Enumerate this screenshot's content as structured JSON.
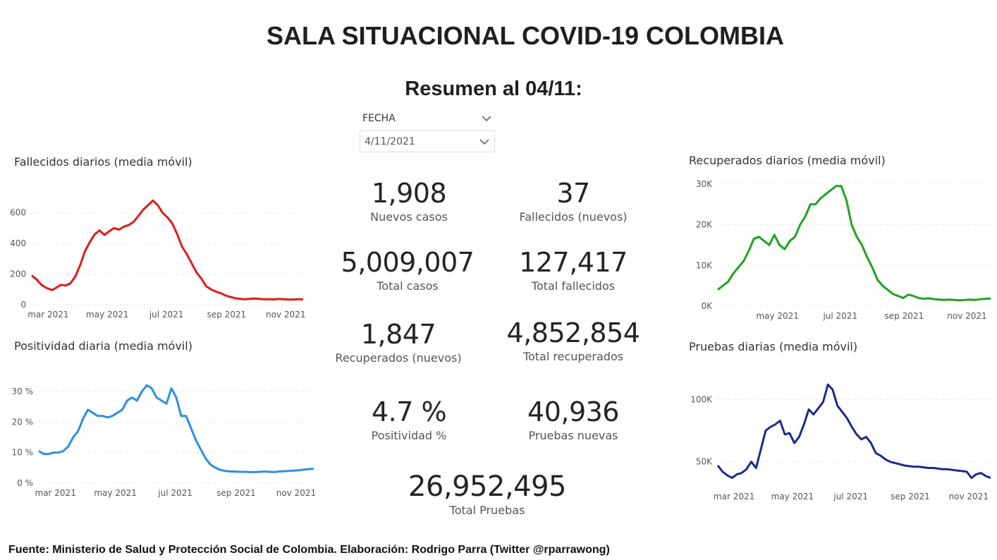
{
  "header": {
    "title": "SALA SITUACIONAL COVID-19 COLOMBIA",
    "subtitle": "Resumen al 04/11:"
  },
  "slicer": {
    "label": "FECHA",
    "value": "4/11/2021"
  },
  "kpis": [
    {
      "value": "1,908",
      "label": "Nuevos casos"
    },
    {
      "value": "37",
      "label": "Fallecidos (nuevos)"
    },
    {
      "value": "5,009,007",
      "label": "Total casos"
    },
    {
      "value": "127,417",
      "label": "Total fallecidos"
    },
    {
      "value": "1,847",
      "label": "Recuperados (nuevos)"
    },
    {
      "value": "4,852,854",
      "label": "Total recuperados"
    },
    {
      "value": "4.7 %",
      "label": "Positividad %"
    },
    {
      "value": "40,936",
      "label": "Pruebas nuevas"
    },
    {
      "value": "26,952,495",
      "label": "Total Pruebas"
    }
  ],
  "footer": "Fuente: Ministerio de Salud y Protección Social de Colombia. Elaboración: Rodrigo Parra (Twitter @rparrawong)",
  "colors": {
    "deaths": "#e01b1b",
    "positivity": "#2b8fe3",
    "recovered": "#1fa31f",
    "tests": "#1a2a8c",
    "grid": "#c8c8c8"
  },
  "chart_data": [
    {
      "id": "deaths",
      "type": "line",
      "title": "Fallecidos diarios (media móvil)",
      "ylim": [
        0,
        700
      ],
      "yticks": [
        0,
        200,
        400,
        600
      ],
      "ytick_labels": [
        "0",
        "200",
        "400",
        "600"
      ],
      "xticks": [
        {
          "label": "mar 2021",
          "x": 62
        },
        {
          "label": "may 2021",
          "x": 123
        },
        {
          "label": "jul 2021",
          "x": 184
        },
        {
          "label": "sep 2021",
          "x": 246
        },
        {
          "label": "nov 2021",
          "x": 307
        }
      ],
      "xlim": [
        45,
        325
      ],
      "grid": true,
      "series": [
        {
          "x": [
            45,
            50,
            55,
            60,
            66,
            70,
            75,
            80,
            85,
            90,
            95,
            100,
            105,
            110,
            115,
            120,
            125,
            130,
            135,
            140,
            145,
            150,
            155,
            160,
            165,
            170,
            175,
            180,
            185,
            190,
            195,
            200,
            205,
            210,
            215,
            220,
            225,
            230,
            235,
            240,
            245,
            250,
            255,
            260,
            265,
            270,
            275,
            280,
            285,
            290,
            295,
            300,
            305,
            310,
            315,
            320,
            325
          ],
          "values": [
            190,
            165,
            130,
            110,
            95,
            110,
            130,
            125,
            140,
            185,
            260,
            350,
            410,
            460,
            485,
            455,
            480,
            500,
            490,
            510,
            520,
            540,
            580,
            620,
            650,
            680,
            650,
            600,
            570,
            530,
            460,
            380,
            330,
            270,
            210,
            170,
            120,
            100,
            85,
            75,
            60,
            50,
            42,
            38,
            35,
            38,
            40,
            38,
            35,
            36,
            34,
            38,
            35,
            33,
            34,
            36,
            35
          ]
        }
      ]
    },
    {
      "id": "positivity",
      "type": "line",
      "title": "Positividad diaria (media móvil)",
      "ylim": [
        0,
        33
      ],
      "yticks": [
        0,
        10,
        20,
        30
      ],
      "ytick_labels": [
        "0 %",
        "10 %",
        "20 %",
        "30 %"
      ],
      "xticks": [
        {
          "label": "mar 2021",
          "x": 62
        },
        {
          "label": "may 2021",
          "x": 123
        },
        {
          "label": "jul 2021",
          "x": 184
        },
        {
          "label": "sep 2021",
          "x": 246
        },
        {
          "label": "nov 2021",
          "x": 307
        }
      ],
      "xlim": [
        45,
        325
      ],
      "grid": true,
      "series": [
        {
          "x": [
            45,
            50,
            55,
            60,
            65,
            70,
            75,
            80,
            85,
            90,
            95,
            100,
            105,
            110,
            115,
            120,
            125,
            130,
            135,
            140,
            145,
            150,
            155,
            160,
            165,
            170,
            175,
            180,
            185,
            190,
            195,
            200,
            205,
            210,
            215,
            220,
            225,
            230,
            235,
            240,
            245,
            250,
            255,
            260,
            265,
            270,
            275,
            280,
            285,
            290,
            295,
            300,
            305,
            310,
            315,
            320,
            325
          ],
          "values": [
            10.5,
            9.5,
            9.5,
            10,
            10,
            10.5,
            12,
            15,
            17,
            21,
            24,
            23,
            22,
            22,
            21.5,
            22,
            23,
            24,
            27,
            28,
            27,
            30,
            32,
            31,
            28,
            27,
            26,
            31,
            28,
            22,
            22,
            18,
            14,
            11,
            8,
            6,
            5,
            4.3,
            4,
            3.8,
            3.8,
            3.7,
            3.7,
            3.6,
            3.6,
            3.7,
            3.8,
            3.7,
            3.6,
            3.8,
            3.9,
            4,
            4.1,
            4.2,
            4.4,
            4.6,
            4.7
          ]
        }
      ]
    },
    {
      "id": "recovered",
      "type": "line",
      "title": "Recuperados diarios (media móvil)",
      "ylim": [
        0,
        31000
      ],
      "yticks": [
        0,
        10000,
        20000,
        30000
      ],
      "ytick_labels": [
        "0K",
        "10K",
        "20K",
        "30K"
      ],
      "xticks": [
        {
          "label": "may 2021",
          "x": 123
        },
        {
          "label": "jul 2021",
          "x": 184
        },
        {
          "label": "sep 2021",
          "x": 246
        },
        {
          "label": "nov 2021",
          "x": 307
        }
      ],
      "xlim": [
        65,
        330
      ],
      "grid": true,
      "series": [
        {
          "x": [
            65,
            70,
            75,
            80,
            85,
            90,
            95,
            100,
            105,
            110,
            115,
            120,
            125,
            130,
            135,
            140,
            145,
            150,
            155,
            160,
            165,
            170,
            175,
            180,
            185,
            190,
            195,
            200,
            205,
            210,
            215,
            220,
            225,
            230,
            235,
            240,
            245,
            250,
            255,
            260,
            265,
            270,
            275,
            280,
            285,
            290,
            295,
            300,
            305,
            310,
            315,
            320,
            325,
            330
          ],
          "values": [
            4000,
            5000,
            6000,
            8000,
            9500,
            11000,
            13500,
            16500,
            17000,
            16000,
            15000,
            17500,
            15000,
            14000,
            16000,
            17000,
            20000,
            22000,
            25000,
            25000,
            26500,
            27500,
            28500,
            29500,
            29500,
            26000,
            20000,
            17000,
            15000,
            12000,
            9500,
            6500,
            5000,
            4000,
            3000,
            2500,
            2000,
            2800,
            2500,
            2000,
            1800,
            1900,
            1700,
            1600,
            1500,
            1600,
            1500,
            1400,
            1500,
            1600,
            1500,
            1700,
            1800,
            1850
          ]
        }
      ]
    },
    {
      "id": "tests",
      "type": "line",
      "title": "Pruebas diarias (media móvil)",
      "ylim": [
        30000,
        115000
      ],
      "yticks": [
        50000,
        100000
      ],
      "ytick_labels": [
        "50K",
        "100K"
      ],
      "xticks": [
        {
          "label": "mar 2021",
          "x": 62
        },
        {
          "label": "may 2021",
          "x": 123
        },
        {
          "label": "jul 2021",
          "x": 184
        },
        {
          "label": "sep 2021",
          "x": 246
        },
        {
          "label": "nov 2021",
          "x": 307
        }
      ],
      "xlim": [
        45,
        330
      ],
      "grid": true,
      "series": [
        {
          "x": [
            45,
            50,
            55,
            60,
            65,
            70,
            75,
            80,
            85,
            90,
            95,
            100,
            105,
            110,
            115,
            120,
            125,
            130,
            135,
            140,
            145,
            150,
            155,
            160,
            165,
            170,
            175,
            180,
            185,
            190,
            195,
            200,
            205,
            210,
            215,
            220,
            225,
            230,
            235,
            240,
            245,
            250,
            255,
            260,
            265,
            270,
            275,
            280,
            285,
            290,
            295,
            300,
            305,
            310,
            315,
            320,
            325,
            330
          ],
          "values": [
            47000,
            42000,
            39000,
            37000,
            40000,
            41000,
            44000,
            50000,
            45000,
            60000,
            75000,
            78000,
            80000,
            83000,
            72000,
            73000,
            65000,
            70000,
            80000,
            92000,
            88000,
            93000,
            98000,
            112000,
            108000,
            95000,
            90000,
            85000,
            78000,
            72000,
            68000,
            70000,
            65000,
            57000,
            55000,
            52000,
            50000,
            49000,
            48000,
            47000,
            46500,
            46000,
            46000,
            45500,
            45000,
            45000,
            44500,
            44000,
            44000,
            43500,
            43000,
            42500,
            42000,
            37000,
            40000,
            41000,
            38500,
            37000
          ]
        }
      ]
    }
  ]
}
